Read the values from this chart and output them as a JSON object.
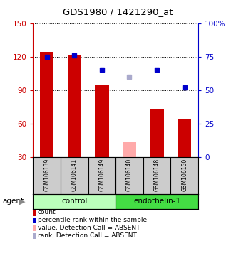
{
  "title": "GDS1980 / 1421290_at",
  "samples": [
    "GSM106139",
    "GSM106141",
    "GSM106149",
    "GSM106140",
    "GSM106148",
    "GSM106150"
  ],
  "groups": [
    "control",
    "control",
    "control",
    "endothelin-1",
    "endothelin-1",
    "endothelin-1"
  ],
  "bar_heights": [
    124,
    122,
    95,
    0,
    73,
    64
  ],
  "bar_heights_absent": [
    0,
    0,
    0,
    43,
    0,
    0
  ],
  "bar_color": "#cc0000",
  "bar_color_absent": "#ffaaaa",
  "blue_dots_pct": [
    75,
    76,
    65,
    0,
    65,
    52
  ],
  "blue_dots_absent_pct": [
    0,
    0,
    0,
    60,
    0,
    0
  ],
  "blue_dot_color": "#0000cc",
  "blue_dot_absent_color": "#aaaacc",
  "ylim_left": [
    30,
    150
  ],
  "ylim_right": [
    0,
    100
  ],
  "yticks_left": [
    30,
    60,
    90,
    120,
    150
  ],
  "yticks_right": [
    0,
    25,
    50,
    75,
    100
  ],
  "ytick_labels_right": [
    "0",
    "25",
    "50",
    "75",
    "100%"
  ],
  "left_axis_color": "#cc0000",
  "right_axis_color": "#0000cc",
  "control_color": "#bbffbb",
  "endothelin_color": "#44dd44",
  "group_label_control": "control",
  "group_label_endothelin": "endothelin-1",
  "agent_label": "agent",
  "legend_items": [
    {
      "color": "#cc0000",
      "label": "count"
    },
    {
      "color": "#0000cc",
      "label": "percentile rank within the sample"
    },
    {
      "color": "#ffaaaa",
      "label": "value, Detection Call = ABSENT"
    },
    {
      "color": "#aaaacc",
      "label": "rank, Detection Call = ABSENT"
    }
  ],
  "bg_color": "#ffffff",
  "plot_bg_color": "#ffffff",
  "sample_label_bg": "#cccccc",
  "bar_width": 0.5
}
